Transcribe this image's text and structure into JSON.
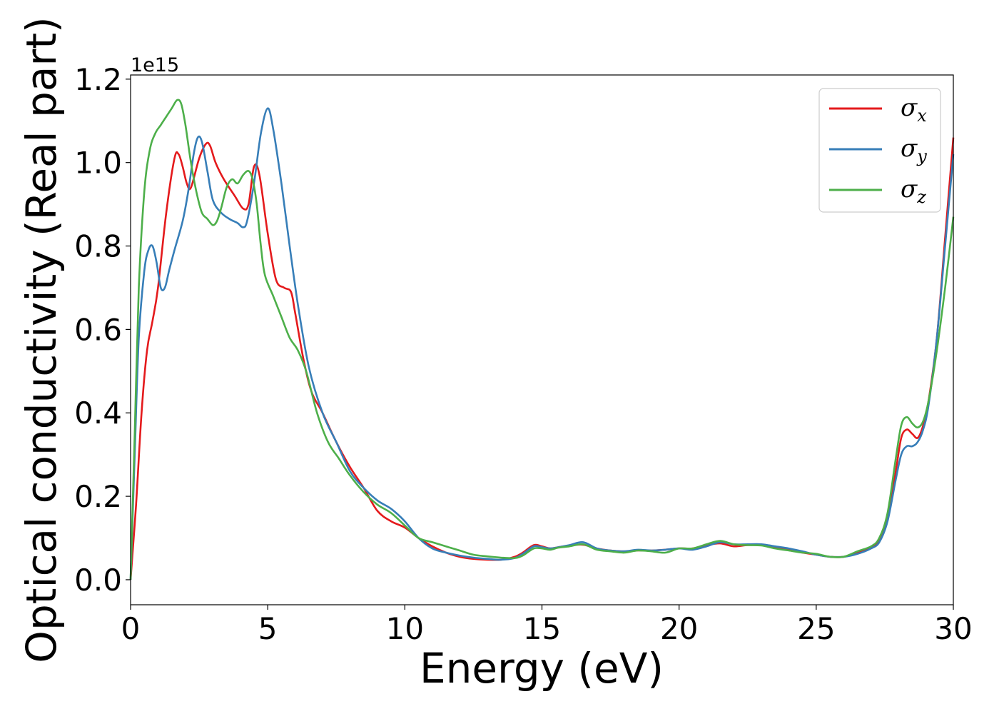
{
  "chart_data": {
    "type": "line",
    "xlabel": "Energy (eV)",
    "ylabel": "Optical conductivity (Real part)",
    "y_offset_label": "1e15",
    "xlim": [
      0,
      30
    ],
    "ylim": [
      -0.06,
      1.21
    ],
    "xticks": [
      0,
      5,
      10,
      15,
      20,
      25,
      30
    ],
    "xtick_labels": [
      "0",
      "5",
      "10",
      "15",
      "20",
      "25",
      "30"
    ],
    "yticks": [
      0.0,
      0.2,
      0.4,
      0.6,
      0.8,
      1.0,
      1.2
    ],
    "ytick_labels": [
      "0.0",
      "0.2",
      "0.4",
      "0.6",
      "0.8",
      "1.0",
      "1.2"
    ],
    "grid": false,
    "legend_position": "top-right",
    "series": [
      {
        "name": "σx",
        "symbol": "σ",
        "subscript": "x",
        "color": "#e41a1c",
        "x": [
          0,
          0.2,
          0.4,
          0.6,
          0.8,
          1.0,
          1.3,
          1.6,
          1.75,
          1.9,
          2.05,
          2.2,
          2.5,
          2.75,
          2.9,
          3.1,
          3.4,
          3.8,
          4.1,
          4.3,
          4.5,
          4.7,
          5.0,
          5.3,
          5.6,
          5.85,
          6.0,
          6.3,
          6.6,
          7.0,
          7.5,
          8.0,
          8.5,
          9.0,
          9.5,
          10.0,
          10.5,
          11.0,
          11.5,
          12.0,
          12.5,
          13.0,
          13.5,
          14.0,
          14.3,
          14.7,
          15.0,
          15.3,
          15.6,
          16.0,
          16.5,
          17.0,
          17.5,
          18.0,
          18.5,
          19.0,
          19.5,
          20.0,
          20.5,
          21.0,
          21.5,
          22.0,
          22.5,
          23.0,
          23.5,
          24.0,
          24.5,
          25.0,
          25.5,
          26.0,
          26.5,
          27.0,
          27.3,
          27.6,
          27.9,
          28.1,
          28.3,
          28.5,
          28.7,
          28.9,
          29.1,
          29.4,
          29.7,
          30.0
        ],
        "y": [
          0.0,
          0.18,
          0.4,
          0.55,
          0.62,
          0.7,
          0.88,
          1.01,
          1.02,
          0.99,
          0.95,
          0.94,
          1.01,
          1.045,
          1.04,
          1.0,
          0.96,
          0.92,
          0.89,
          0.9,
          0.99,
          0.97,
          0.83,
          0.72,
          0.7,
          0.69,
          0.64,
          0.53,
          0.45,
          0.4,
          0.33,
          0.27,
          0.22,
          0.165,
          0.14,
          0.125,
          0.1,
          0.08,
          0.065,
          0.055,
          0.05,
          0.048,
          0.048,
          0.055,
          0.065,
          0.083,
          0.08,
          0.075,
          0.078,
          0.082,
          0.084,
          0.075,
          0.07,
          0.068,
          0.07,
          0.07,
          0.072,
          0.075,
          0.075,
          0.083,
          0.087,
          0.08,
          0.083,
          0.083,
          0.078,
          0.072,
          0.065,
          0.06,
          0.055,
          0.055,
          0.065,
          0.078,
          0.095,
          0.15,
          0.26,
          0.34,
          0.36,
          0.35,
          0.34,
          0.37,
          0.43,
          0.58,
          0.82,
          1.06
        ]
      },
      {
        "name": "σy",
        "symbol": "σ",
        "subscript": "y",
        "color": "#377eb8",
        "x": [
          0,
          0.15,
          0.3,
          0.5,
          0.65,
          0.8,
          0.95,
          1.1,
          1.25,
          1.4,
          1.6,
          1.9,
          2.1,
          2.3,
          2.45,
          2.6,
          2.8,
          3.0,
          3.3,
          3.6,
          3.9,
          4.1,
          4.25,
          4.5,
          4.75,
          5.0,
          5.2,
          5.5,
          5.8,
          6.1,
          6.5,
          7.0,
          7.5,
          8.0,
          8.5,
          9.0,
          9.5,
          10.0,
          10.5,
          11.0,
          11.5,
          12.0,
          12.5,
          13.0,
          13.5,
          14.0,
          14.3,
          14.7,
          15.0,
          15.3,
          15.6,
          16.0,
          16.5,
          17.0,
          17.5,
          18.0,
          18.5,
          19.0,
          19.5,
          20.0,
          20.5,
          21.0,
          21.5,
          22.0,
          22.5,
          23.0,
          23.5,
          24.0,
          24.5,
          25.0,
          25.5,
          26.0,
          26.5,
          27.0,
          27.3,
          27.6,
          27.9,
          28.1,
          28.3,
          28.5,
          28.7,
          28.9,
          29.1,
          29.4,
          29.7,
          30.0
        ],
        "y": [
          0.0,
          0.3,
          0.58,
          0.74,
          0.79,
          0.8,
          0.76,
          0.7,
          0.7,
          0.74,
          0.79,
          0.86,
          0.93,
          1.02,
          1.06,
          1.05,
          0.98,
          0.91,
          0.88,
          0.865,
          0.855,
          0.845,
          0.86,
          0.95,
          1.07,
          1.13,
          1.08,
          0.95,
          0.8,
          0.66,
          0.51,
          0.4,
          0.33,
          0.26,
          0.22,
          0.19,
          0.17,
          0.14,
          0.1,
          0.075,
          0.065,
          0.058,
          0.053,
          0.05,
          0.048,
          0.052,
          0.062,
          0.08,
          0.078,
          0.075,
          0.078,
          0.083,
          0.09,
          0.075,
          0.07,
          0.068,
          0.072,
          0.07,
          0.072,
          0.075,
          0.072,
          0.08,
          0.09,
          0.085,
          0.085,
          0.085,
          0.08,
          0.075,
          0.068,
          0.06,
          0.055,
          0.055,
          0.062,
          0.075,
          0.09,
          0.14,
          0.24,
          0.3,
          0.32,
          0.32,
          0.33,
          0.36,
          0.42,
          0.58,
          0.8,
          1.02
        ]
      },
      {
        "name": "σz",
        "symbol": "σ",
        "subscript": "z",
        "color": "#4daf4a",
        "x": [
          0,
          0.15,
          0.3,
          0.5,
          0.7,
          0.9,
          1.1,
          1.3,
          1.5,
          1.7,
          1.85,
          2.0,
          2.2,
          2.4,
          2.6,
          2.8,
          3.0,
          3.15,
          3.3,
          3.5,
          3.7,
          3.9,
          4.1,
          4.3,
          4.45,
          4.6,
          4.75,
          4.9,
          5.2,
          5.5,
          5.8,
          6.1,
          6.4,
          6.8,
          7.2,
          7.6,
          8.0,
          8.5,
          9.0,
          9.5,
          10.0,
          10.5,
          11.0,
          11.5,
          12.0,
          12.5,
          13.0,
          13.5,
          14.0,
          14.3,
          14.7,
          15.0,
          15.3,
          15.6,
          16.0,
          16.5,
          17.0,
          17.5,
          18.0,
          18.5,
          19.0,
          19.5,
          20.0,
          20.5,
          21.0,
          21.5,
          22.0,
          22.5,
          23.0,
          23.5,
          24.0,
          24.5,
          25.0,
          25.5,
          26.0,
          26.5,
          27.0,
          27.3,
          27.6,
          27.9,
          28.1,
          28.3,
          28.5,
          28.7,
          28.9,
          29.1,
          29.4,
          29.7,
          30.0
        ],
        "y": [
          0.0,
          0.35,
          0.7,
          0.93,
          1.03,
          1.07,
          1.09,
          1.11,
          1.13,
          1.15,
          1.14,
          1.09,
          1.0,
          0.93,
          0.88,
          0.865,
          0.85,
          0.86,
          0.89,
          0.94,
          0.96,
          0.95,
          0.97,
          0.98,
          0.96,
          0.9,
          0.8,
          0.73,
          0.68,
          0.63,
          0.58,
          0.55,
          0.5,
          0.4,
          0.33,
          0.29,
          0.25,
          0.21,
          0.18,
          0.16,
          0.13,
          0.1,
          0.09,
          0.08,
          0.07,
          0.06,
          0.056,
          0.053,
          0.052,
          0.058,
          0.075,
          0.075,
          0.072,
          0.077,
          0.08,
          0.085,
          0.072,
          0.068,
          0.065,
          0.07,
          0.068,
          0.065,
          0.075,
          0.075,
          0.085,
          0.093,
          0.085,
          0.083,
          0.082,
          0.075,
          0.07,
          0.065,
          0.062,
          0.055,
          0.055,
          0.068,
          0.08,
          0.1,
          0.16,
          0.29,
          0.37,
          0.39,
          0.375,
          0.365,
          0.38,
          0.43,
          0.55,
          0.7,
          0.87
        ]
      }
    ]
  }
}
